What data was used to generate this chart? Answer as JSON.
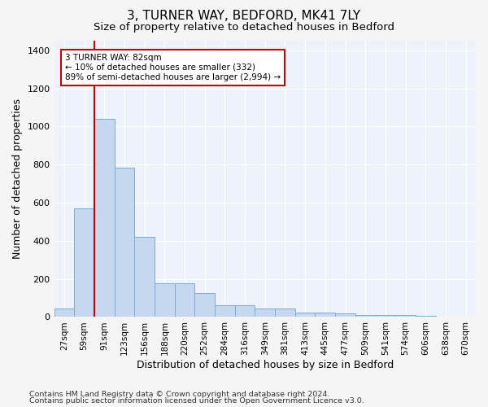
{
  "title_line1": "3, TURNER WAY, BEDFORD, MK41 7LY",
  "title_line2": "Size of property relative to detached houses in Bedford",
  "xlabel": "Distribution of detached houses by size in Bedford",
  "ylabel": "Number of detached properties",
  "categories": [
    "27sqm",
    "59sqm",
    "91sqm",
    "123sqm",
    "156sqm",
    "188sqm",
    "220sqm",
    "252sqm",
    "284sqm",
    "316sqm",
    "349sqm",
    "381sqm",
    "413sqm",
    "445sqm",
    "477sqm",
    "509sqm",
    "541sqm",
    "574sqm",
    "606sqm",
    "638sqm",
    "670sqm"
  ],
  "values": [
    43,
    570,
    1040,
    785,
    420,
    178,
    178,
    125,
    62,
    62,
    45,
    45,
    25,
    25,
    18,
    12,
    12,
    10,
    5,
    0,
    0
  ],
  "bar_color": "#c5d8ef",
  "bar_edge_color": "#7aadd4",
  "highlight_color": "#cc0000",
  "vline_x_index": 2,
  "ylim_max": 1450,
  "yticks": [
    0,
    200,
    400,
    600,
    800,
    1000,
    1200,
    1400
  ],
  "annotation_text": "3 TURNER WAY: 82sqm\n← 10% of detached houses are smaller (332)\n89% of semi-detached houses are larger (2,994) →",
  "annotation_box_facecolor": "#ffffff",
  "annotation_box_edgecolor": "#cc0000",
  "footer_line1": "Contains HM Land Registry data © Crown copyright and database right 2024.",
  "footer_line2": "Contains public sector information licensed under the Open Government Licence v3.0.",
  "bg_color": "#eef2fa",
  "grid_color": "#ffffff",
  "fig_bg_color": "#f5f5f5"
}
